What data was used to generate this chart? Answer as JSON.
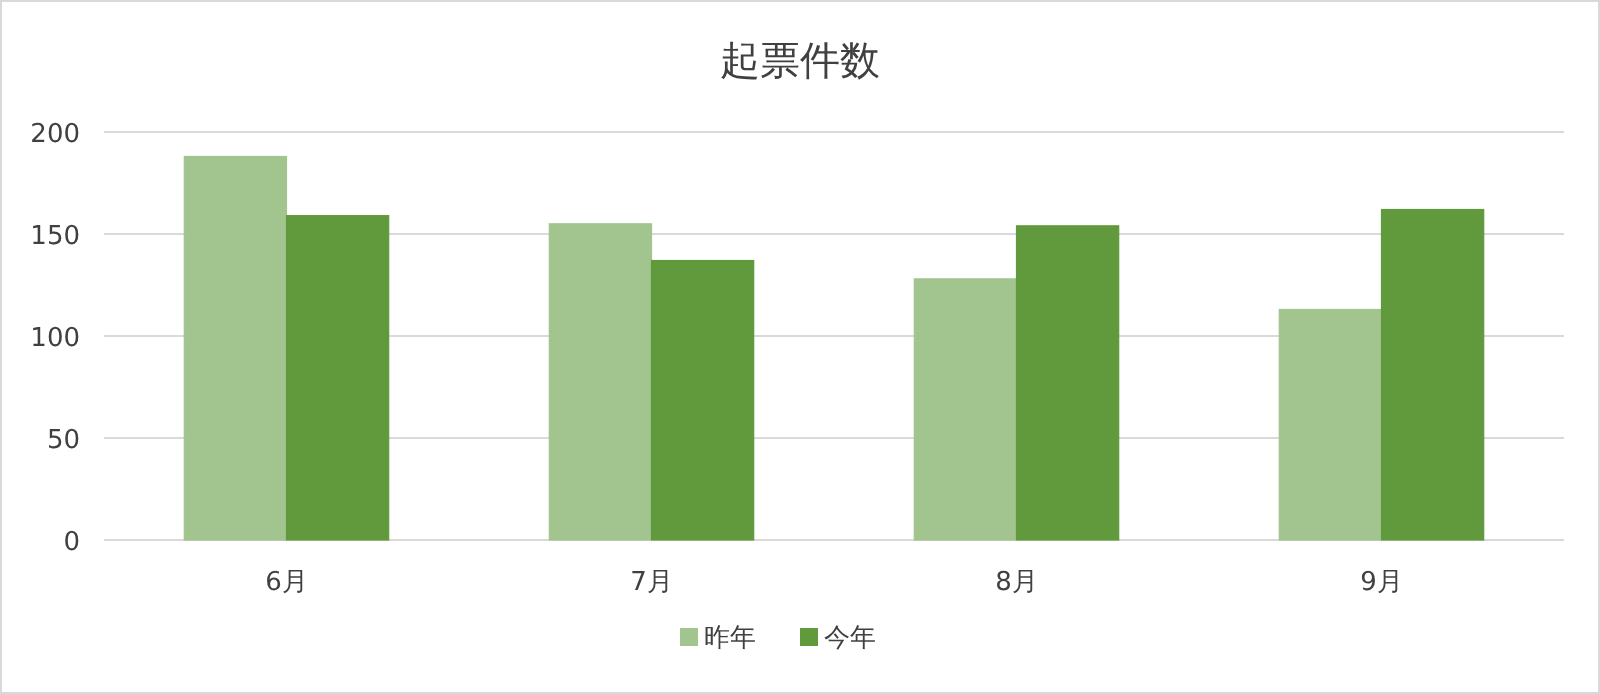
{
  "chart_data": {
    "type": "bar",
    "title": "起票件数",
    "categories": [
      "6月",
      "7月",
      "8月",
      "9月"
    ],
    "series": [
      {
        "name": "昨年",
        "color": "#a2c48f",
        "values": [
          188,
          155,
          128,
          113
        ]
      },
      {
        "name": "今年",
        "color": "#619a3d",
        "values": [
          159,
          137,
          154,
          162
        ]
      }
    ],
    "ylim": [
      0,
      200
    ],
    "yticks": [
      0,
      50,
      100,
      150,
      200
    ],
    "grid": "y",
    "legend": "bottom"
  }
}
